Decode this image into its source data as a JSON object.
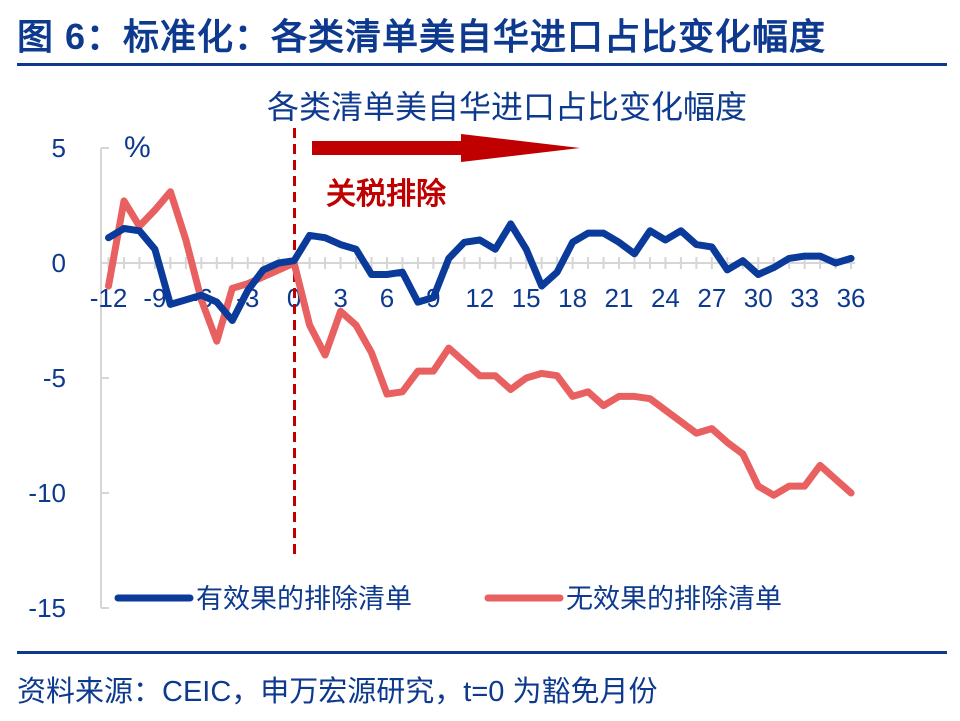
{
  "figure": {
    "title": "图 6：标准化：各类清单美自华进口占比变化幅度",
    "source": "资料来源：CEIC，申万宏源研究，t=0 为豁免月份"
  },
  "colors": {
    "brand_blue": "#0d3a8e",
    "series_effective": "#0a3a9a",
    "series_ineffective": "#e86060",
    "annotation_red": "#c00000",
    "axis_gray": "#d6d6d6"
  },
  "annotation": {
    "label": "关税排除",
    "arrow": "right-arrow",
    "vline_x": 0
  },
  "chart_data": {
    "type": "line",
    "title": "各类清单美自华进口占比变化幅度",
    "xlabel": "",
    "ylabel": "%",
    "ylim": [
      -15,
      5
    ],
    "xlim": [
      -12,
      36
    ],
    "yticks": [
      "5",
      "0",
      "-5",
      "-10",
      "-15"
    ],
    "xticks": [
      "-12",
      "-9",
      "-6",
      "-3",
      "0",
      "3",
      "6",
      "9",
      "12",
      "15",
      "18",
      "21",
      "24",
      "27",
      "30",
      "33",
      "36"
    ],
    "grid": false,
    "legend_position": "bottom",
    "x": [
      -12,
      -11,
      -10,
      -9,
      -8,
      -7,
      -6,
      -5,
      -4,
      -3,
      -2,
      -1,
      0,
      1,
      2,
      3,
      4,
      5,
      6,
      7,
      8,
      9,
      10,
      11,
      12,
      13,
      14,
      15,
      16,
      17,
      18,
      19,
      20,
      21,
      22,
      23,
      24,
      25,
      26,
      27,
      28,
      29,
      30,
      31,
      32,
      33,
      34,
      35,
      36
    ],
    "series": [
      {
        "name": "有效果的排除清单",
        "color": "#0a3a9a",
        "values": [
          1.1,
          1.5,
          1.4,
          0.6,
          -1.8,
          -1.6,
          -1.4,
          -1.7,
          -2.5,
          -1.2,
          -0.3,
          0.0,
          0.1,
          1.2,
          1.1,
          0.8,
          0.6,
          -0.5,
          -0.5,
          -0.4,
          -1.7,
          -1.5,
          0.2,
          0.9,
          1.0,
          0.6,
          1.7,
          0.6,
          -1.0,
          -0.4,
          0.9,
          1.3,
          1.3,
          0.9,
          0.4,
          1.4,
          1.0,
          1.4,
          0.8,
          0.7,
          -0.3,
          0.1,
          -0.5,
          -0.2,
          0.2,
          0.3,
          0.3,
          0.0,
          0.2
        ]
      },
      {
        "name": "无效果的排除清单",
        "color": "#e86060",
        "values": [
          -1.0,
          2.7,
          1.6,
          2.3,
          3.1,
          1.0,
          -1.6,
          -3.4,
          -1.1,
          -0.9,
          -0.6,
          -0.3,
          0.0,
          -2.7,
          -4.0,
          -2.1,
          -2.7,
          -3.9,
          -5.7,
          -5.6,
          -4.7,
          -4.7,
          -3.7,
          -4.3,
          -4.9,
          -4.9,
          -5.5,
          -5.0,
          -4.8,
          -4.9,
          -5.8,
          -5.6,
          -6.2,
          -5.8,
          -5.8,
          -5.9,
          -6.4,
          -6.9,
          -7.4,
          -7.2,
          -7.8,
          -8.3,
          -9.7,
          -10.1,
          -9.7,
          -9.7,
          -8.8,
          -9.4,
          -10.0
        ]
      }
    ]
  }
}
